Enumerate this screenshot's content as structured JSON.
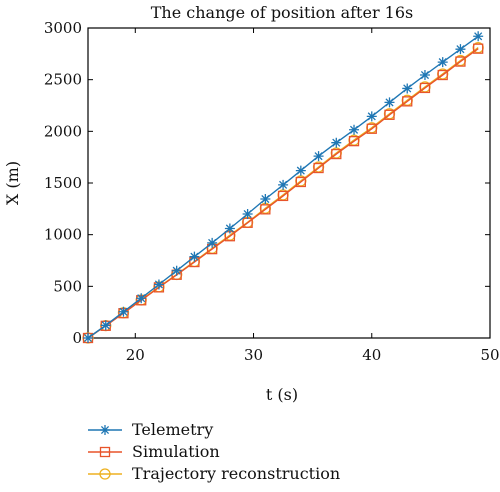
{
  "chart_data": {
    "type": "line",
    "title": "The change of position after 16s",
    "xlabel": "t (s)",
    "ylabel": "X (m)",
    "xlim": [
      16,
      50
    ],
    "ylim": [
      0,
      3000
    ],
    "x_ticks": [
      20,
      30,
      40,
      50
    ],
    "y_ticks": [
      0,
      500,
      1000,
      1500,
      2000,
      2500,
      3000
    ],
    "grid": false,
    "legend_position": "below",
    "x": [
      16,
      17.5,
      19,
      20.5,
      22,
      23.5,
      25,
      26.5,
      28,
      29.5,
      31,
      32.5,
      34,
      35.5,
      37,
      38.5,
      40,
      41.5,
      43,
      44.5,
      46,
      47.5,
      49
    ],
    "series": [
      {
        "name": "Telemetry",
        "color": "#1f77b4",
        "marker": "star",
        "values": [
          0,
          123,
          254,
          385,
          518,
          651,
          787,
          920,
          1060,
          1200,
          1345,
          1482,
          1620,
          1760,
          1890,
          2015,
          2145,
          2280,
          2415,
          2545,
          2670,
          2795,
          2920
        ]
      },
      {
        "name": "Simulation",
        "color": "#e8542a",
        "marker": "square",
        "values": [
          0,
          118,
          240,
          365,
          490,
          612,
          735,
          860,
          985,
          1115,
          1245,
          1375,
          1510,
          1645,
          1780,
          1905,
          2025,
          2160,
          2290,
          2420,
          2545,
          2675,
          2800
        ]
      },
      {
        "name": "Trajectory reconstruction",
        "color": "#edb120",
        "marker": "circle",
        "values": [
          0,
          120,
          244,
          368,
          495,
          615,
          740,
          868,
          995,
          1120,
          1255,
          1385,
          1520,
          1655,
          1790,
          1915,
          2035,
          2170,
          2300,
          2430,
          2555,
          2685,
          2810
        ]
      }
    ]
  }
}
